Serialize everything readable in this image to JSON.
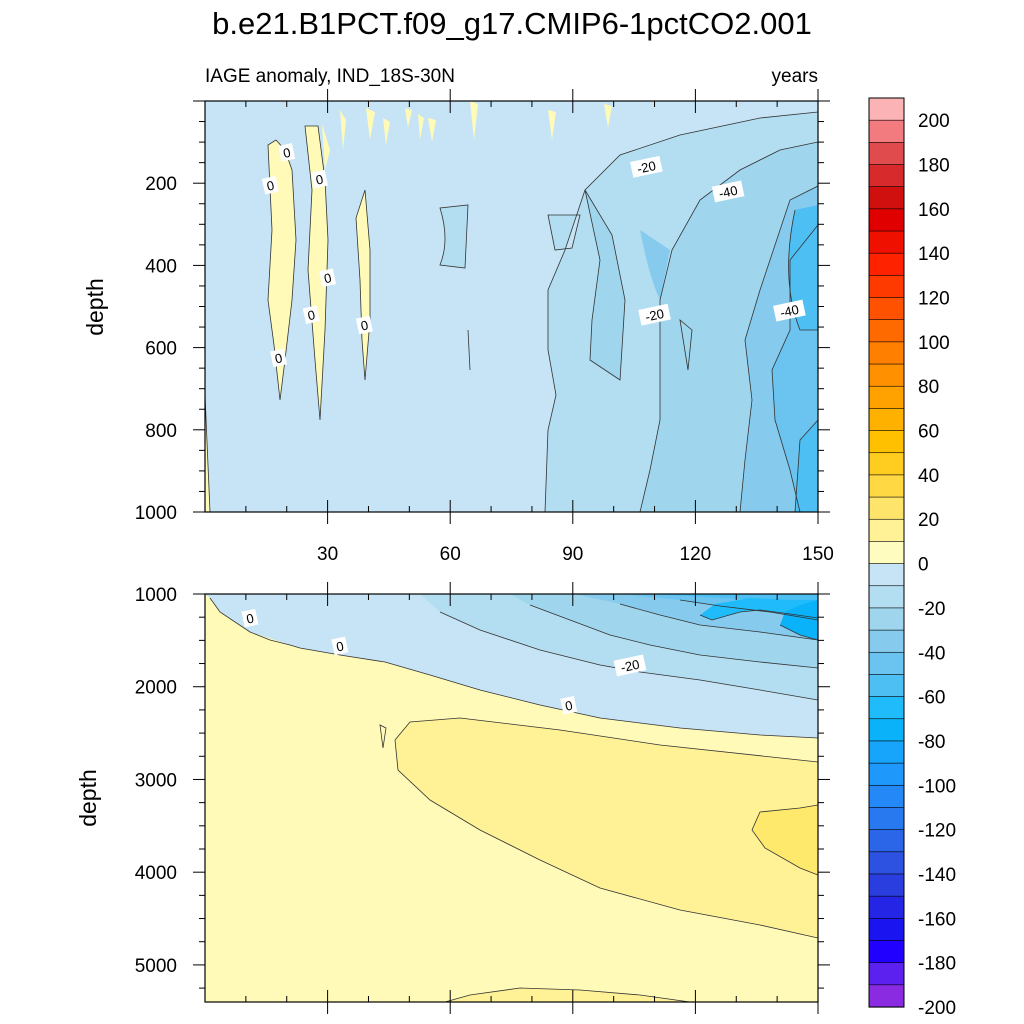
{
  "title": "b.e21.B1PCT.f09_g17.CMIP6-1pctCO2.001",
  "chart_data": {
    "type": "heatmap",
    "subtitle_left": "IAGE anomaly, IND_18S-30N",
    "subtitle_right": "years",
    "xlim": [
      0,
      150
    ],
    "x_tick_labels": [
      "30",
      "60",
      "90",
      "120",
      "150"
    ],
    "panels": [
      {
        "name": "upper",
        "ylabel": "depth",
        "ylim": [
          0,
          1000
        ],
        "y_tick_labels": [
          "200",
          "400",
          "600",
          "800",
          "1000"
        ],
        "contour_labels": [
          {
            "text": "0",
            "x": 20,
            "y": 125
          },
          {
            "text": "0",
            "x": 16,
            "y": 205
          },
          {
            "text": "0",
            "x": 28,
            "y": 190
          },
          {
            "text": "0",
            "x": 30,
            "y": 430
          },
          {
            "text": "0",
            "x": 26,
            "y": 520
          },
          {
            "text": "0",
            "x": 39,
            "y": 545
          },
          {
            "text": "0",
            "x": 18,
            "y": 625
          },
          {
            "text": "-20",
            "x": 108,
            "y": 160
          },
          {
            "text": "-40",
            "x": 128,
            "y": 220
          },
          {
            "text": "-20",
            "x": 110,
            "y": 520
          },
          {
            "text": "-40",
            "x": 143,
            "y": 510
          }
        ]
      },
      {
        "name": "lower",
        "ylabel": "depth",
        "ylim": [
          1000,
          5400
        ],
        "y_tick_labels": [
          "1000",
          "2000",
          "3000",
          "4000",
          "5000"
        ],
        "contour_labels": [
          {
            "text": "0",
            "x": 11,
            "y": 1260
          },
          {
            "text": "0",
            "x": 33,
            "y": 1560
          },
          {
            "text": "-20",
            "x": 104,
            "y": 1770
          },
          {
            "text": "0",
            "x": 89,
            "y": 2200
          }
        ]
      }
    ],
    "colorbar": {
      "levels": [
        200,
        190,
        180,
        170,
        160,
        150,
        140,
        130,
        120,
        110,
        100,
        90,
        80,
        70,
        60,
        50,
        40,
        30,
        20,
        10,
        0,
        -10,
        -20,
        -30,
        -40,
        -50,
        -60,
        -70,
        -80,
        -90,
        -100,
        -110,
        -120,
        -130,
        -140,
        -150,
        -160,
        -170,
        -180,
        -190,
        -200
      ],
      "tick_labels": [
        "200",
        "180",
        "160",
        "140",
        "120",
        "100",
        "80",
        "60",
        "40",
        "20",
        "0",
        "-20",
        "-40",
        "-60",
        "-80",
        "-100",
        "-120",
        "-140",
        "-160",
        "-180",
        "-200"
      ],
      "colors": [
        "#fbb3b6",
        "#f27b7f",
        "#e04b4d",
        "#d62a2c",
        "#d00f0f",
        "#e00000",
        "#f01000",
        "#ff2200",
        "#ff3a00",
        "#ff5200",
        "#ff6a00",
        "#ff7f00",
        "#ff9100",
        "#ffa200",
        "#ffb100",
        "#ffc000",
        "#ffcc20",
        "#ffd843",
        "#ffe46b",
        "#fff296",
        "#fffcc0",
        "#c6e4f5",
        "#b3ddf1",
        "#9fd6ee",
        "#86cbed",
        "#6ac4ef",
        "#4dbff2",
        "#1fbbfa",
        "#0ab2fa",
        "#16a5fa",
        "#1e98fa",
        "#2489f7",
        "#2878f0",
        "#2b65e8",
        "#2d51e0",
        "#2a3ee0",
        "#2525e5",
        "#1a15f0",
        "#2200ff",
        "#5c20ef",
        "#8a2be2"
      ]
    },
    "fill_colors": {
      "pos0": "#fffab8",
      "pos1": "#fff296",
      "pos2": "#fee96d",
      "neg1": "#c6e4f5",
      "neg2": "#b3ddf1",
      "neg3": "#9fd6ee",
      "neg4": "#86cbed",
      "neg5": "#6ac4ef",
      "neg6": "#4dbff2",
      "neg7": "#1fbbfa",
      "neg8": "#0ab2fa"
    }
  }
}
